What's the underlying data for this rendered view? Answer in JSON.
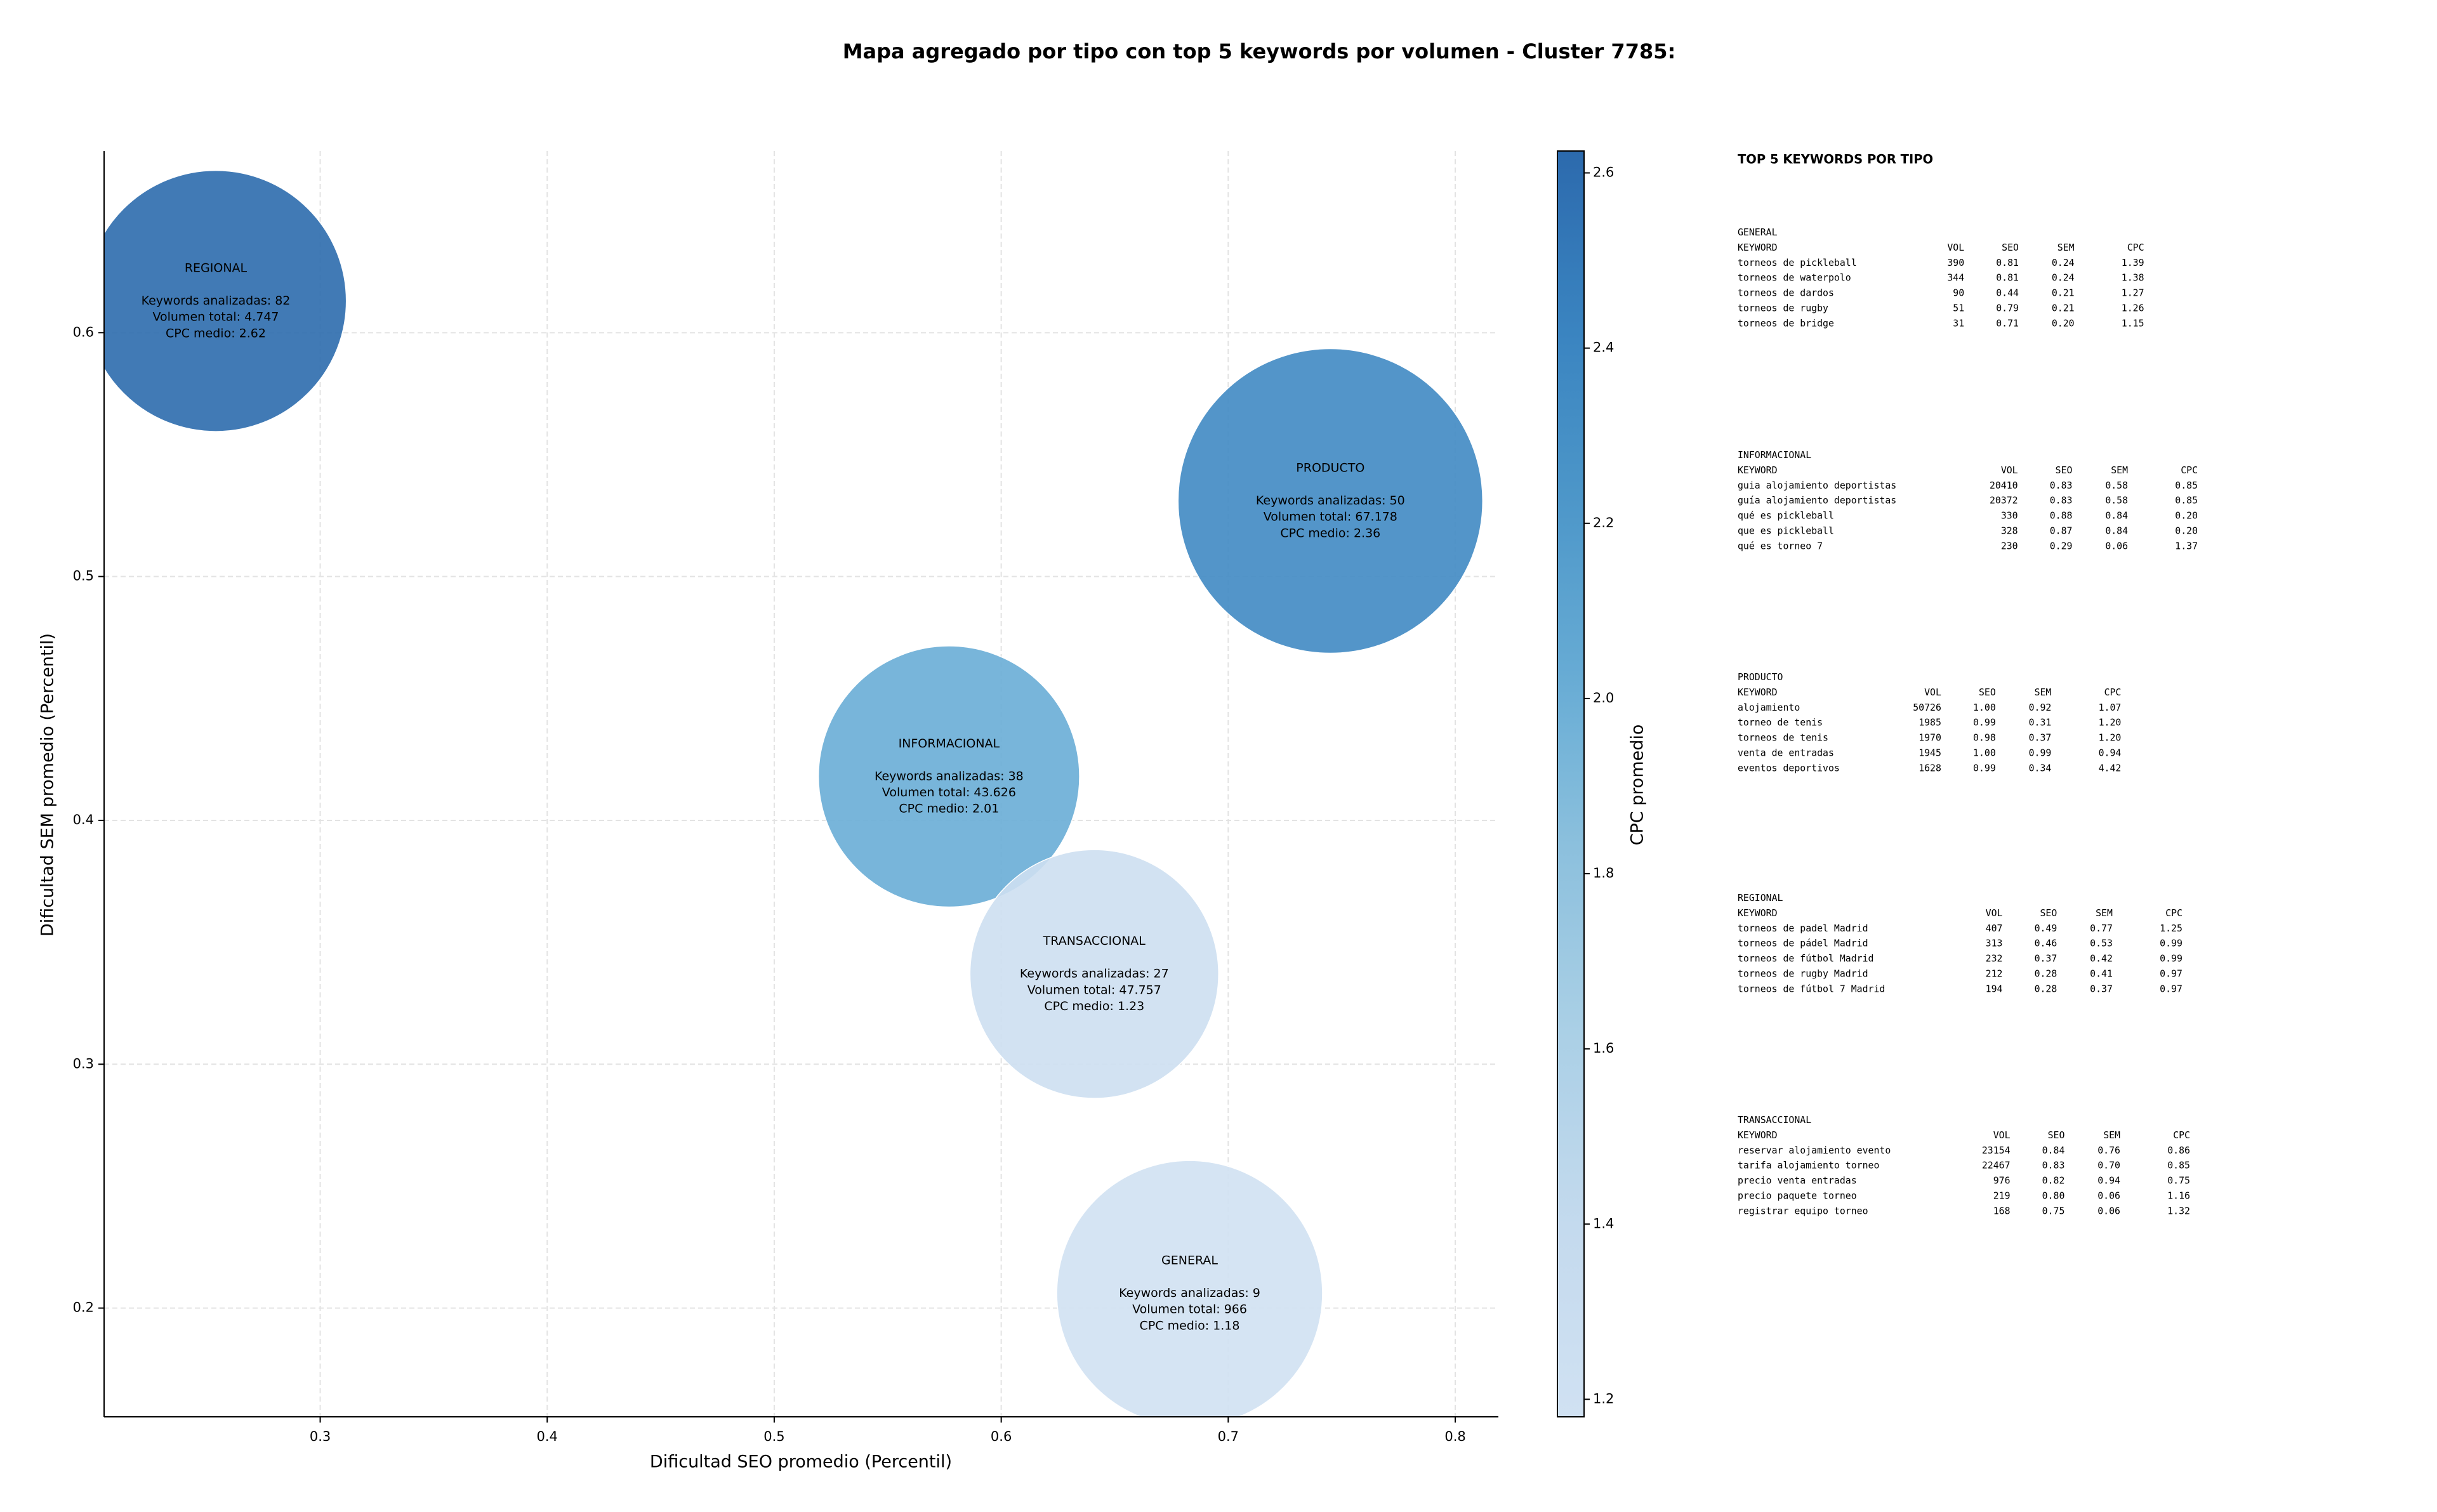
{
  "chart_data": {
    "type": "scatter",
    "title": "Mapa agregado por tipo con top 5 keywords por volumen - Cluster 7785:",
    "x_label": "Dificultad SEO promedio (Percentil)",
    "y_label": "Dificultad SEM promedio (Percentil)",
    "colorbar_label": "CPC promedio",
    "colormap": "Blues",
    "alpha": 0.9,
    "grid": true,
    "x": [
      0.683,
      0.577,
      0.745,
      0.254,
      0.641
    ],
    "y": [
      0.206,
      0.418,
      0.531,
      0.613,
      0.337
    ],
    "sizes": [
      7310,
      7056,
      9604,
      7056,
      6400
    ],
    "c": [
      1.18,
      2.01,
      2.36,
      2.62,
      1.23
    ],
    "bubble_labels": [
      {
        "title": "GENERAL",
        "lines": [
          "Keywords analizadas: 9",
          "Volumen total: 966",
          "CPC medio: 1.18"
        ]
      },
      {
        "title": "INFORMACIONAL",
        "lines": [
          "Keywords analizadas: 38",
          "Volumen total: 43.626",
          "CPC medio: 2.01"
        ]
      },
      {
        "title": "PRODUCTO",
        "lines": [
          "Keywords analizadas: 50",
          "Volumen total: 67.178",
          "CPC medio: 2.36"
        ]
      },
      {
        "title": "REGIONAL",
        "lines": [
          "Keywords analizadas: 82",
          "Volumen total: 4.747",
          "CPC medio: 2.62"
        ]
      },
      {
        "title": "TRANSACCIONAL",
        "lines": [
          "Keywords analizadas: 27",
          "Volumen total: 47.757",
          "CPC medio: 1.23"
        ]
      }
    ],
    "xlim": [
      0.2048,
      0.819
    ],
    "ylim": [
      0.1554,
      0.6745
    ],
    "xticks": [
      0.3,
      0.4,
      0.5,
      0.6,
      0.7,
      0.8
    ],
    "yticks": [
      0.2,
      0.3,
      0.4,
      0.5,
      0.6
    ],
    "clim": [
      1.18,
      2.625
    ],
    "cticks": [
      1.2,
      1.4,
      1.6,
      1.8,
      {
        "value": 2,
        "label": "2.0"
      },
      2.2,
      2.4,
      2.6
    ]
  },
  "side_panel": {
    "title": "TOP 5 KEYWORDS POR TIPO",
    "tables": [
      {
        "name": "GENERAL",
        "columns": [
          "KEYWORD",
          "VOL",
          "SEO",
          "SEM",
          "CPC"
        ],
        "rows": [
          [
            "torneos de pickleball",
            "390",
            "0.81",
            "0.24",
            "1.39"
          ],
          [
            "torneos de waterpolo",
            "344",
            "0.81",
            "0.24",
            "1.38"
          ],
          [
            "torneos de dardos",
            "90",
            "0.44",
            "0.21",
            "1.27"
          ],
          [
            "torneos de rugby",
            "51",
            "0.79",
            "0.21",
            "1.26"
          ],
          [
            "torneos de bridge",
            "31",
            "0.71",
            "0.20",
            "1.15"
          ]
        ]
      },
      {
        "name": "INFORMACIONAL",
        "columns": [
          "KEYWORD",
          "VOL",
          "SEO",
          "SEM",
          "CPC"
        ],
        "rows": [
          [
            "guia alojamiento deportistas",
            "20410",
            "0.83",
            "0.58",
            "0.85"
          ],
          [
            "guía alojamiento deportistas",
            "20372",
            "0.83",
            "0.58",
            "0.85"
          ],
          [
            "qué es pickleball",
            "330",
            "0.88",
            "0.84",
            "0.20"
          ],
          [
            "que es pickleball",
            "328",
            "0.87",
            "0.84",
            "0.20"
          ],
          [
            "qué es torneo 7",
            "230",
            "0.29",
            "0.06",
            "1.37"
          ]
        ]
      },
      {
        "name": "PRODUCTO",
        "columns": [
          "KEYWORD",
          "VOL",
          "SEO",
          "SEM",
          "CPC"
        ],
        "rows": [
          [
            "alojamiento",
            "50726",
            "1.00",
            "0.92",
            "1.07"
          ],
          [
            "torneo de tenis",
            "1985",
            "0.99",
            "0.31",
            "1.20"
          ],
          [
            "torneos de tenis",
            "1970",
            "0.98",
            "0.37",
            "1.20"
          ],
          [
            "venta de entradas",
            "1945",
            "1.00",
            "0.99",
            "0.94"
          ],
          [
            "eventos deportivos",
            "1628",
            "0.99",
            "0.34",
            "4.42"
          ]
        ]
      },
      {
        "name": "REGIONAL",
        "columns": [
          "KEYWORD",
          "VOL",
          "SEO",
          "SEM",
          "CPC"
        ],
        "rows": [
          [
            "torneos de padel Madrid",
            "407",
            "0.49",
            "0.77",
            "1.25"
          ],
          [
            "torneos de pádel Madrid",
            "313",
            "0.46",
            "0.53",
            "0.99"
          ],
          [
            "torneos de fútbol Madrid",
            "232",
            "0.37",
            "0.42",
            "0.99"
          ],
          [
            "torneos de rugby Madrid",
            "212",
            "0.28",
            "0.41",
            "0.97"
          ],
          [
            "torneos de fútbol 7 Madrid",
            "194",
            "0.28",
            "0.37",
            "0.97"
          ]
        ]
      },
      {
        "name": "TRANSACCIONAL",
        "columns": [
          "KEYWORD",
          "VOL",
          "SEO",
          "SEM",
          "CPC"
        ],
        "rows": [
          [
            "reservar alojamiento evento",
            "23154",
            "0.84",
            "0.76",
            "0.86"
          ],
          [
            "tarifa alojamiento torneo",
            "22467",
            "0.83",
            "0.70",
            "0.85"
          ],
          [
            "precio venta entradas",
            "976",
            "0.82",
            "0.94",
            "0.75"
          ],
          [
            "precio paquete torneo",
            "219",
            "0.80",
            "0.06",
            "1.16"
          ],
          [
            "registrar equipo torneo",
            "168",
            "0.75",
            "0.06",
            "1.32"
          ]
        ]
      }
    ]
  }
}
